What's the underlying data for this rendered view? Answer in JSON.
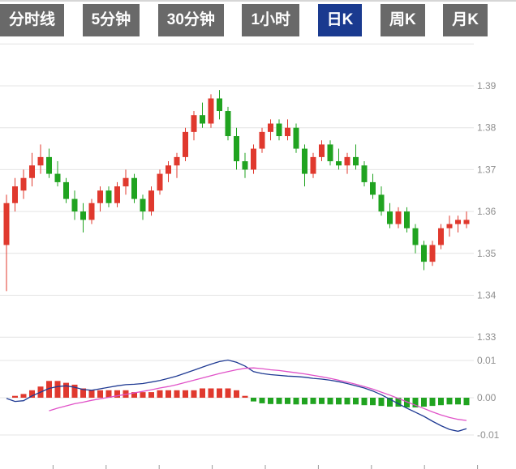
{
  "tabs": {
    "items": [
      {
        "label": "分时线",
        "active": false
      },
      {
        "label": "5分钟",
        "active": false
      },
      {
        "label": "30分钟",
        "active": false
      },
      {
        "label": "1小时",
        "active": false
      },
      {
        "label": "日K",
        "active": true
      },
      {
        "label": "周K",
        "active": false
      },
      {
        "label": "月K",
        "active": false
      }
    ],
    "inactive_bg": "#696969",
    "active_bg": "#1a3a8f",
    "text_color": "#ffffff"
  },
  "chart_data": {
    "type": "candlestick",
    "period": "日K",
    "title": "",
    "grid": true,
    "candle_format": [
      "open",
      "high",
      "low",
      "close"
    ],
    "colors": {
      "up": "#e0392e",
      "down": "#20a320",
      "dif_line": "#1f3a93",
      "dea_line": "#e052c8",
      "grid": "#e4e4e4",
      "axis_text": "#8f8f8f"
    },
    "price_axis": {
      "position": "right",
      "range": [
        1.33,
        1.4
      ],
      "ticks": [
        1.39,
        1.38,
        1.37,
        1.36,
        1.35,
        1.34,
        1.33
      ]
    },
    "candles": [
      [
        1.352,
        1.364,
        1.341,
        1.362
      ],
      [
        1.362,
        1.368,
        1.36,
        1.366
      ],
      [
        1.365,
        1.37,
        1.363,
        1.368
      ],
      [
        1.368,
        1.374,
        1.366,
        1.371
      ],
      [
        1.371,
        1.376,
        1.369,
        1.373
      ],
      [
        1.373,
        1.375,
        1.368,
        1.369
      ],
      [
        1.369,
        1.372,
        1.366,
        1.367
      ],
      [
        1.367,
        1.368,
        1.362,
        1.363
      ],
      [
        1.363,
        1.365,
        1.358,
        1.36
      ],
      [
        1.36,
        1.362,
        1.355,
        1.358
      ],
      [
        1.358,
        1.363,
        1.357,
        1.362
      ],
      [
        1.362,
        1.366,
        1.36,
        1.365
      ],
      [
        1.365,
        1.366,
        1.361,
        1.362
      ],
      [
        1.362,
        1.367,
        1.361,
        1.366
      ],
      [
        1.366,
        1.37,
        1.364,
        1.368
      ],
      [
        1.368,
        1.369,
        1.362,
        1.363
      ],
      [
        1.363,
        1.364,
        1.358,
        1.36
      ],
      [
        1.36,
        1.366,
        1.359,
        1.365
      ],
      [
        1.365,
        1.37,
        1.364,
        1.369
      ],
      [
        1.369,
        1.372,
        1.367,
        1.371
      ],
      [
        1.371,
        1.374,
        1.368,
        1.373
      ],
      [
        1.373,
        1.38,
        1.372,
        1.379
      ],
      [
        1.379,
        1.384,
        1.377,
        1.383
      ],
      [
        1.383,
        1.386,
        1.38,
        1.381
      ],
      [
        1.381,
        1.388,
        1.38,
        1.387
      ],
      [
        1.387,
        1.389,
        1.382,
        1.384
      ],
      [
        1.384,
        1.385,
        1.377,
        1.378
      ],
      [
        1.378,
        1.38,
        1.37,
        1.372
      ],
      [
        1.372,
        1.374,
        1.368,
        1.37
      ],
      [
        1.37,
        1.376,
        1.369,
        1.375
      ],
      [
        1.375,
        1.38,
        1.374,
        1.379
      ],
      [
        1.379,
        1.382,
        1.377,
        1.381
      ],
      [
        1.381,
        1.382,
        1.377,
        1.378
      ],
      [
        1.378,
        1.382,
        1.377,
        1.38
      ],
      [
        1.38,
        1.381,
        1.374,
        1.375
      ],
      [
        1.375,
        1.376,
        1.366,
        1.369
      ],
      [
        1.369,
        1.374,
        1.368,
        1.373
      ],
      [
        1.373,
        1.377,
        1.372,
        1.376
      ],
      [
        1.376,
        1.377,
        1.371,
        1.372
      ],
      [
        1.372,
        1.375,
        1.37,
        1.371
      ],
      [
        1.371,
        1.374,
        1.369,
        1.373
      ],
      [
        1.373,
        1.376,
        1.37,
        1.371
      ],
      [
        1.371,
        1.372,
        1.366,
        1.367
      ],
      [
        1.367,
        1.369,
        1.363,
        1.364
      ],
      [
        1.364,
        1.366,
        1.359,
        1.36
      ],
      [
        1.36,
        1.362,
        1.356,
        1.357
      ],
      [
        1.357,
        1.361,
        1.356,
        1.36
      ],
      [
        1.36,
        1.361,
        1.355,
        1.356
      ],
      [
        1.356,
        1.357,
        1.35,
        1.352
      ],
      [
        1.352,
        1.353,
        1.346,
        1.348
      ],
      [
        1.348,
        1.353,
        1.347,
        1.352
      ],
      [
        1.352,
        1.357,
        1.351,
        1.356
      ],
      [
        1.356,
        1.359,
        1.354,
        1.357
      ],
      [
        1.357,
        1.359,
        1.355,
        1.358
      ],
      [
        1.357,
        1.36,
        1.356,
        1.358
      ]
    ],
    "indicator": {
      "type": "MACD",
      "axis_ticks": [
        0.01,
        0.0,
        -0.01
      ],
      "dif": [
        -0.0002,
        -0.001,
        -0.0008,
        0.0005,
        0.0015,
        0.0025,
        0.003,
        0.0032,
        0.0028,
        0.0022,
        0.002,
        0.0024,
        0.0028,
        0.0032,
        0.0035,
        0.0036,
        0.0038,
        0.0042,
        0.0046,
        0.0052,
        0.0058,
        0.0066,
        0.0074,
        0.0082,
        0.009,
        0.0097,
        0.0101,
        0.0095,
        0.0085,
        0.007,
        0.0065,
        0.0062,
        0.006,
        0.0058,
        0.0057,
        0.0055,
        0.0052,
        0.005,
        0.0047,
        0.0043,
        0.0038,
        0.0032,
        0.0026,
        0.0018,
        0.0008,
        -0.0004,
        -0.0016,
        -0.0028,
        -0.0039,
        -0.005,
        -0.0063,
        -0.0075,
        -0.0085,
        -0.009,
        -0.0083
      ],
      "dea": [
        null,
        null,
        null,
        null,
        null,
        -0.0035,
        -0.0028,
        -0.0022,
        -0.0016,
        -0.0012,
        -0.0007,
        -0.0003,
        0.0001,
        0.0005,
        0.0009,
        0.0013,
        0.0017,
        0.0021,
        0.0026,
        0.003,
        0.0035,
        0.0041,
        0.0047,
        0.0053,
        0.0059,
        0.0065,
        0.007,
        0.0075,
        0.0079,
        0.008,
        0.0078,
        0.0075,
        0.0073,
        0.007,
        0.0067,
        0.0064,
        0.006,
        0.0056,
        0.0052,
        0.0047,
        0.0042,
        0.0036,
        0.003,
        0.0023,
        0.0015,
        0.0007,
        -0.0002,
        -0.0011,
        -0.002,
        -0.0029,
        -0.0038,
        -0.0046,
        -0.0053,
        -0.0058,
        -0.0061
      ],
      "histogram": [
        0,
        0.0005,
        0.001,
        0.002,
        0.003,
        0.0045,
        0.0045,
        0.004,
        0.0035,
        0.0025,
        0.002,
        0.002,
        0.002,
        0.002,
        0.002,
        0.0015,
        0.0015,
        0.0015,
        0.002,
        0.002,
        0.002,
        0.002,
        0.002,
        0.0025,
        0.0025,
        0.0025,
        0.0025,
        0.002,
        0.0005,
        -0.001,
        -0.0015,
        -0.0017,
        -0.0017,
        -0.0017,
        -0.0018,
        -0.0018,
        -0.0017,
        -0.0017,
        -0.0018,
        -0.0018,
        -0.0018,
        -0.0018,
        -0.002,
        -0.002,
        -0.0022,
        -0.0024,
        -0.0024,
        -0.0026,
        -0.0026,
        -0.0024,
        -0.0022,
        -0.002,
        -0.0018,
        -0.0018,
        -0.002
      ]
    }
  }
}
